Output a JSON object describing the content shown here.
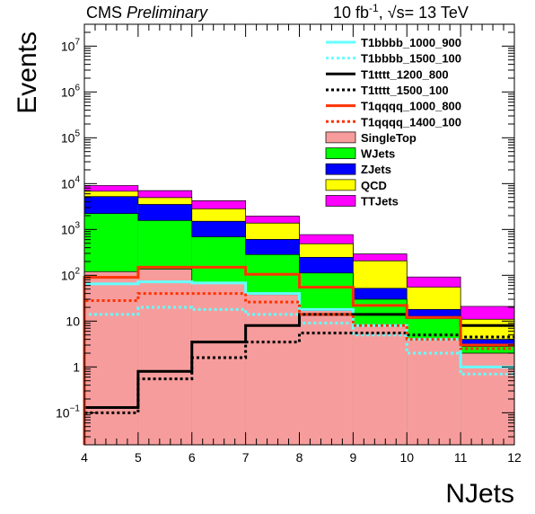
{
  "header": {
    "cms": "CMS",
    "preliminary": "Preliminary",
    "lumi_value": "10 fb",
    "lumi_exp": "-1",
    "energy_sep": ", ",
    "sqrt_s": "√s",
    "energy": "= 13 TeV"
  },
  "chart_data": {
    "type": "bar",
    "xlabel": "NJets",
    "ylabel": "Events",
    "x_edges": [
      4,
      5,
      6,
      7,
      8,
      9,
      10,
      11,
      12
    ],
    "xlim": [
      4,
      12
    ],
    "ylim": [
      0.02,
      30000000
    ],
    "yscale": "log",
    "x_ticks": [
      "4",
      "5",
      "6",
      "7",
      "8",
      "9",
      "10",
      "11",
      "12"
    ],
    "y_ticks": [
      {
        "value": 0.1,
        "base": "10",
        "exp": "−1"
      },
      {
        "value": 1,
        "label": "1"
      },
      {
        "value": 10,
        "label": "10"
      },
      {
        "value": 100,
        "base": "10",
        "exp": "2"
      },
      {
        "value": 1000,
        "base": "10",
        "exp": "3"
      },
      {
        "value": 10000,
        "base": "10",
        "exp": "4"
      },
      {
        "value": 100000,
        "base": "10",
        "exp": "5"
      },
      {
        "value": 1000000,
        "base": "10",
        "exp": "6"
      },
      {
        "value": 10000000,
        "base": "10",
        "exp": "7"
      }
    ],
    "legend_position": "top-right",
    "stack": [
      {
        "name": "SingleTop",
        "color": "#f79c9c",
        "values": [
          120,
          135,
          70,
          38,
          17,
          8,
          4,
          2
        ]
      },
      {
        "name": "WJets",
        "color": "#00ff00",
        "values": [
          2100,
          1430,
          620,
          245,
          95,
          22,
          8,
          0.8
        ]
      },
      {
        "name": "ZJets",
        "color": "#0000ff",
        "values": [
          3000,
          1950,
          820,
          325,
          135,
          22,
          6,
          1.2
        ]
      },
      {
        "name": "QCD",
        "color": "#ffff00",
        "values": [
          1600,
          1450,
          1300,
          770,
          240,
          155,
          37,
          7
        ]
      },
      {
        "name": "TTJets",
        "color": "#ff00ff",
        "values": [
          2280,
          2070,
          1430,
          580,
          285,
          85,
          37,
          10
        ]
      }
    ],
    "signals": [
      {
        "name": "T1bbbb_1000_900",
        "color": "#66ffff",
        "style": "solid",
        "values": [
          65,
          72,
          68,
          40,
          18,
          8,
          4,
          1
        ]
      },
      {
        "name": "T1bbbb_1500_100",
        "color": "#66ffff",
        "style": "dotted",
        "values": [
          14,
          20,
          18,
          14,
          9,
          5,
          2,
          0.7
        ]
      },
      {
        "name": "T1tttt_1200_800",
        "color": "#000000",
        "style": "solid",
        "values": [
          0.13,
          0.8,
          3.5,
          8,
          14,
          14,
          12,
          8
        ]
      },
      {
        "name": "T1tttt_1500_100",
        "color": "#000000",
        "style": "dotted",
        "values": [
          0.1,
          0.55,
          1.6,
          3.5,
          5.5,
          5.5,
          5,
          4.5
        ]
      },
      {
        "name": "T1qqqq_1000_800",
        "color": "#ff3300",
        "style": "solid",
        "values": [
          90,
          150,
          150,
          105,
          55,
          22,
          12,
          3
        ]
      },
      {
        "name": "T1qqqq_1400_100",
        "color": "#ff3300",
        "style": "dotted",
        "values": [
          28,
          40,
          40,
          26,
          14,
          8,
          4,
          2.5
        ]
      }
    ]
  }
}
